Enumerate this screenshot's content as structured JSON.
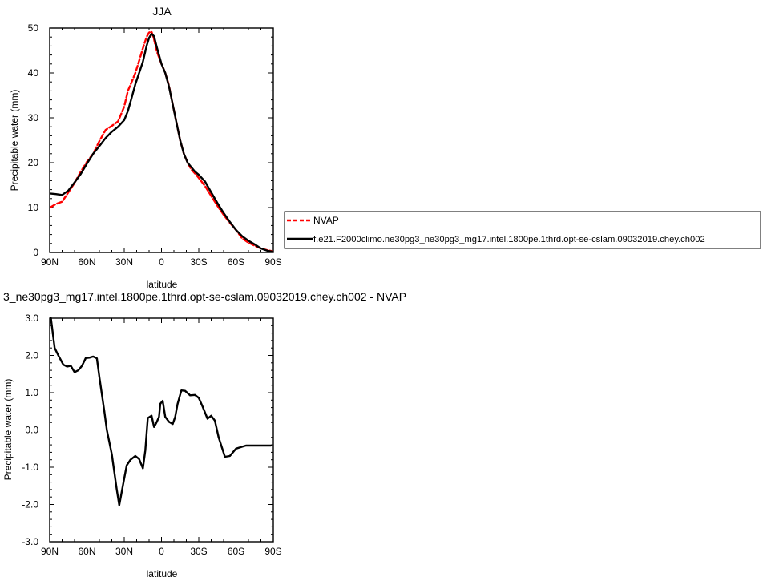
{
  "chart_data": [
    {
      "type": "line",
      "title": "JJA",
      "xlabel": "latitude",
      "ylabel": "Precipitable water (mm)",
      "xlim": [
        90,
        -90
      ],
      "ylim": [
        0,
        50
      ],
      "xticks": [
        90,
        60,
        30,
        0,
        -30,
        -60,
        -90
      ],
      "xticklabels": [
        "90N",
        "60N",
        "30N",
        "0",
        "30S",
        "60S",
        "90S"
      ],
      "yticks": [
        0,
        10,
        20,
        30,
        40,
        50
      ],
      "yticklabels": [
        "0",
        "10",
        "20",
        "30",
        "40",
        "50"
      ],
      "grid": false,
      "legend_position": "right",
      "series": [
        {
          "name": "NVAP",
          "color": "#ff0000",
          "style": "dashed",
          "x": [
            89,
            85,
            80,
            75,
            70,
            65,
            60,
            55,
            50,
            45,
            40,
            35,
            30,
            27,
            24,
            21,
            18,
            15,
            12,
            10,
            8,
            6,
            4,
            2,
            0,
            -3,
            -6,
            -9,
            -12,
            -15,
            -18,
            -21,
            -24,
            -27,
            -30,
            -35,
            -40,
            -45,
            -50,
            -55,
            -60,
            -65,
            -70,
            -75,
            -80,
            -85,
            -89
          ],
          "y": [
            10.1,
            10.8,
            11.3,
            13.4,
            15.5,
            18.0,
            20.2,
            22.0,
            24.8,
            27.3,
            28.2,
            29.2,
            32.5,
            36.0,
            38.0,
            40.0,
            42.7,
            45.5,
            48.0,
            49.0,
            49.2,
            47.5,
            45.0,
            43.5,
            42.0,
            40.0,
            37.2,
            33.0,
            29.0,
            25.0,
            22.0,
            20.0,
            18.5,
            17.6,
            16.6,
            14.8,
            12.6,
            10.4,
            8.4,
            6.6,
            5.0,
            3.1,
            2.2,
            1.5,
            0.9,
            0.5,
            0.3
          ]
        },
        {
          "name": "f.e21.F2000climo.ne30pg3_ne30pg3_mg17.intel.1800pe.1thrd.opt-se-cslam.09032019.chey.ch002",
          "color": "#000000",
          "style": "solid",
          "x": [
            89,
            85,
            80,
            75,
            70,
            65,
            60,
            55,
            50,
            45,
            40,
            35,
            30,
            27,
            24,
            21,
            18,
            15,
            12,
            10,
            8,
            6,
            4,
            2,
            0,
            -3,
            -6,
            -9,
            -12,
            -15,
            -18,
            -21,
            -24,
            -27,
            -30,
            -35,
            -40,
            -45,
            -50,
            -55,
            -60,
            -65,
            -70,
            -75,
            -80,
            -85,
            -89
          ],
          "y": [
            13.1,
            13.0,
            12.8,
            13.8,
            15.6,
            17.5,
            19.8,
            22.0,
            23.7,
            25.5,
            26.9,
            28.0,
            29.5,
            31.5,
            34.5,
            37.5,
            40.0,
            42.5,
            46.0,
            47.8,
            48.7,
            48.2,
            46.0,
            44.0,
            42.0,
            40.0,
            37.0,
            33.0,
            29.0,
            25.0,
            22.0,
            20.0,
            19.0,
            18.0,
            17.3,
            15.8,
            13.4,
            11.0,
            8.8,
            6.8,
            5.0,
            3.6,
            2.6,
            1.8,
            0.9,
            0.4,
            0.2
          ]
        }
      ]
    },
    {
      "type": "line",
      "title": "3_ne30pg3_mg17.intel.1800pe.1thrd.opt-se-cslam.09032019.chey.ch002 - NVAP",
      "xlabel": "latitude",
      "ylabel": "Precipitable water (mm)",
      "xlim": [
        90,
        -90
      ],
      "ylim": [
        -3.0,
        3.0
      ],
      "xticks": [
        90,
        60,
        30,
        0,
        -30,
        -60,
        -90
      ],
      "xticklabels": [
        "90N",
        "60N",
        "30N",
        "0",
        "30S",
        "60S",
        "90S"
      ],
      "yticks": [
        -3,
        -2,
        -1,
        0,
        1,
        2,
        3
      ],
      "yticklabels": [
        "-3.0",
        "-2.0",
        "-1.0",
        "0.0",
        "1.0",
        "2.0",
        "3.0"
      ],
      "grid": false,
      "series": [
        {
          "color": "#000000",
          "style": "solid",
          "x": [
            89,
            86,
            83,
            79,
            76,
            73,
            70,
            67,
            64,
            61,
            58,
            55,
            52,
            50,
            46,
            44,
            40,
            36,
            34,
            30,
            28,
            25,
            21,
            18,
            15,
            13,
            11,
            8,
            6,
            4,
            2,
            1,
            -1,
            -3,
            -6,
            -9,
            -11,
            -13,
            -16,
            -19,
            -23,
            -27,
            -30,
            -33,
            -37,
            -40,
            -43,
            -46,
            -51,
            -55,
            -60,
            -65,
            -68,
            -72,
            -76,
            -78,
            -81,
            -84,
            -88
          ],
          "y": [
            3.0,
            2.2,
            2.0,
            1.75,
            1.7,
            1.72,
            1.55,
            1.6,
            1.72,
            1.93,
            1.94,
            1.97,
            1.92,
            1.42,
            0.5,
            0.0,
            -0.65,
            -1.6,
            -2.02,
            -1.3,
            -0.95,
            -0.8,
            -0.7,
            -0.78,
            -1.03,
            -0.55,
            0.32,
            0.38,
            0.08,
            0.2,
            0.35,
            0.7,
            0.78,
            0.35,
            0.22,
            0.16,
            0.35,
            0.7,
            1.06,
            1.05,
            0.93,
            0.94,
            0.86,
            0.63,
            0.3,
            0.38,
            0.25,
            -0.2,
            -0.72,
            -0.7,
            -0.5,
            -0.45,
            -0.42,
            -0.42,
            -0.42,
            -0.42,
            -0.42,
            -0.42,
            -0.42
          ]
        }
      ]
    }
  ]
}
